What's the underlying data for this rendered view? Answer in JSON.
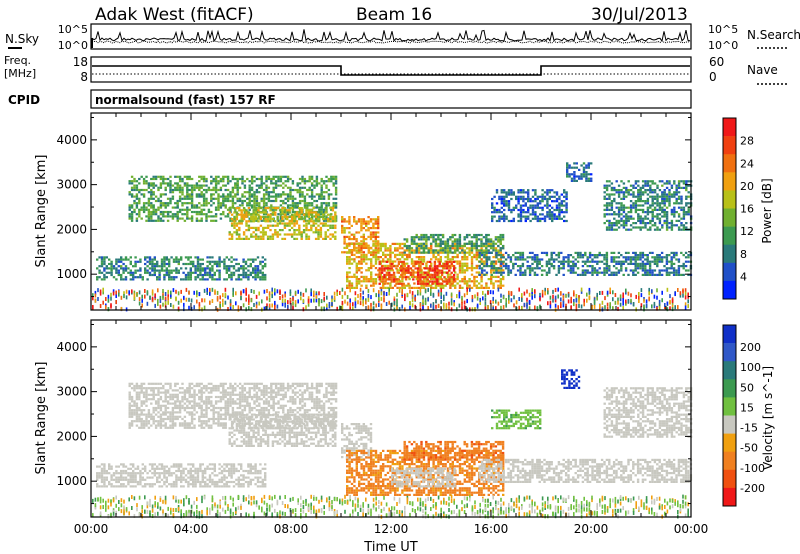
{
  "header": {
    "station": "Adak West (fitACF)",
    "beam": "Beam 16",
    "date": "30/Jul/2013"
  },
  "noise_panel": {
    "left_label": "N.Sky",
    "left_ticks": [
      "10^5",
      "10^0"
    ],
    "right_label": "N.Search",
    "right_ticks": [
      "10^5",
      "10^0"
    ]
  },
  "freq_panel": {
    "left_label_line1": "Freq.",
    "left_label_line2": "[MHz]",
    "left_ticks": [
      "18",
      "8"
    ],
    "right_label": "Nave",
    "right_ticks": [
      "60",
      "0"
    ]
  },
  "cpid": {
    "label": "CPID",
    "value": "normalsound (fast) 157 RF"
  },
  "x_axis": {
    "title": "Time UT",
    "tick_labels": [
      "00:00",
      "04:00",
      "08:00",
      "12:00",
      "16:00",
      "20:00",
      "00:00"
    ]
  },
  "chart_data": [
    {
      "type": "heatmap",
      "name": "power-panel",
      "ylabel": "Slant Range [km]",
      "xlabel": "Time UT",
      "xlim_hours": [
        0,
        24
      ],
      "ylim_km": [
        200,
        4600
      ],
      "y_ticks": [
        1000,
        2000,
        3000,
        4000
      ],
      "colorbar": {
        "label": "Power [dB]",
        "ticks": [
          4,
          8,
          12,
          16,
          20,
          24,
          28
        ],
        "colors": [
          "#0022ff",
          "#2050c8",
          "#2a7a7a",
          "#3c9a50",
          "#70b030",
          "#b8c018",
          "#f0a010",
          "#f07010",
          "#f04010",
          "#f01818"
        ]
      },
      "regions": [
        {
          "t0": 0.2,
          "t1": 7.0,
          "r0": 900,
          "r1": 1400,
          "value": 9
        },
        {
          "t0": 1.5,
          "t1": 9.8,
          "r0": 2200,
          "r1": 3200,
          "value": 12
        },
        {
          "t0": 5.5,
          "t1": 9.8,
          "r0": 1800,
          "r1": 2500,
          "value": 18
        },
        {
          "t0": 10.0,
          "t1": 11.5,
          "r0": 1500,
          "r1": 2300,
          "value": 22
        },
        {
          "t0": 10.2,
          "t1": 16.5,
          "r0": 700,
          "r1": 1700,
          "value": 20
        },
        {
          "t0": 11.5,
          "t1": 14.5,
          "r0": 800,
          "r1": 1300,
          "value": 27
        },
        {
          "t0": 12.5,
          "t1": 16.5,
          "r0": 1500,
          "r1": 1900,
          "value": 11
        },
        {
          "t0": 15.5,
          "t1": 24.0,
          "r0": 1000,
          "r1": 1500,
          "value": 8
        },
        {
          "t0": 16.0,
          "t1": 19.0,
          "r0": 2200,
          "r1": 2900,
          "value": 6
        },
        {
          "t0": 19.0,
          "t1": 20.0,
          "r0": 3100,
          "r1": 3500,
          "value": 7
        },
        {
          "t0": 20.5,
          "t1": 24.0,
          "r0": 2000,
          "r1": 3100,
          "value": 9
        }
      ]
    },
    {
      "type": "heatmap",
      "name": "velocity-panel",
      "ylabel": "Slant Range [km]",
      "xlabel": "Time UT",
      "xlim_hours": [
        0,
        24
      ],
      "ylim_km": [
        200,
        4600
      ],
      "y_ticks": [
        1000,
        2000,
        3000,
        4000
      ],
      "colorbar": {
        "label": "Velocity [m s^-1]",
        "ticks": [
          200,
          100,
          50,
          15,
          -15,
          -50,
          -100,
          -200
        ],
        "colors": [
          "#1030c8",
          "#3058c8",
          "#2a7a7a",
          "#3c9a50",
          "#70c040",
          "#c8c8c0",
          "#f0a010",
          "#f08020",
          "#f05010",
          "#f01818"
        ]
      },
      "regions": [
        {
          "t0": 0.2,
          "t1": 7.0,
          "r0": 900,
          "r1": 1400,
          "value": 0
        },
        {
          "t0": 1.5,
          "t1": 9.8,
          "r0": 2200,
          "r1": 3200,
          "value": 0
        },
        {
          "t0": 5.5,
          "t1": 9.8,
          "r0": 1800,
          "r1": 2500,
          "value": 0
        },
        {
          "t0": 10.0,
          "t1": 11.2,
          "r0": 1500,
          "r1": 2300,
          "value": 0
        },
        {
          "t0": 10.2,
          "t1": 16.5,
          "r0": 700,
          "r1": 1700,
          "value": -60
        },
        {
          "t0": 12.0,
          "t1": 14.5,
          "r0": 900,
          "r1": 1300,
          "value": 0
        },
        {
          "t0": 12.5,
          "t1": 16.5,
          "r0": 1500,
          "r1": 1900,
          "value": -90
        },
        {
          "t0": 15.5,
          "t1": 24.0,
          "r0": 1000,
          "r1": 1500,
          "value": 0
        },
        {
          "t0": 16.0,
          "t1": 18.0,
          "r0": 2200,
          "r1": 2600,
          "value": 40
        },
        {
          "t0": 18.8,
          "t1": 19.5,
          "r0": 3100,
          "r1": 3500,
          "value": 220
        },
        {
          "t0": 20.5,
          "t1": 24.0,
          "r0": 2000,
          "r1": 3100,
          "value": 0
        }
      ]
    }
  ]
}
